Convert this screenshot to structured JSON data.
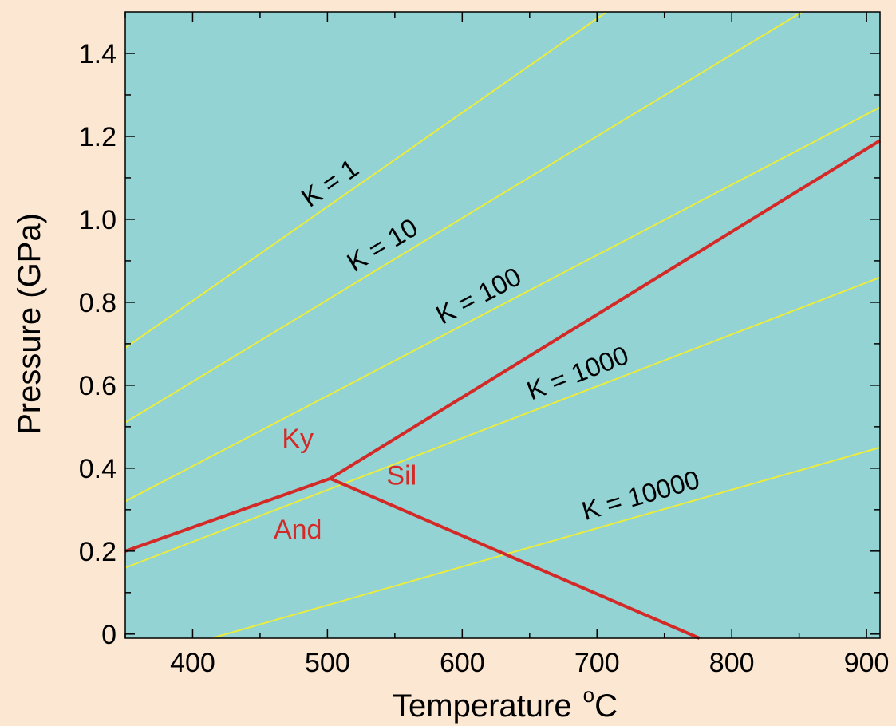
{
  "chart_data": {
    "type": "line",
    "xlabel": "Temperature",
    "xlabel_unit_sup": "o",
    "xlabel_unit": "C",
    "ylabel": "Pressure (GPa)",
    "xlim": [
      350,
      910
    ],
    "ylim": [
      -0.01,
      1.5
    ],
    "xticks": [
      400,
      500,
      600,
      700,
      800,
      900
    ],
    "xtick_labels": [
      "400",
      "500",
      "600",
      "700",
      "800",
      "900"
    ],
    "yticks": [
      0,
      0.2,
      0.4,
      0.6,
      0.8,
      1.0,
      1.2,
      1.4
    ],
    "ytick_labels": [
      "0",
      "0.2",
      "0.4",
      "0.6",
      "0.8",
      "1.0",
      "1.2",
      "1.4"
    ],
    "grid": false,
    "colors": {
      "background": "#fce8d2",
      "plot_area": "#93d3d4",
      "k_lines": "#ecec3c",
      "phase_boundary": "#d42a27",
      "text": "#000000"
    },
    "k_series": [
      {
        "name": "K = 1",
        "x": [
          350,
          707
        ],
        "y": [
          0.69,
          1.5
        ]
      },
      {
        "name": "K = 10",
        "x": [
          350,
          852
        ],
        "y": [
          0.51,
          1.5
        ]
      },
      {
        "name": "K = 100",
        "x": [
          350,
          910
        ],
        "y": [
          0.32,
          1.27
        ]
      },
      {
        "name": "K = 1000",
        "x": [
          350,
          910
        ],
        "y": [
          0.16,
          0.86
        ]
      },
      {
        "name": "K = 10000",
        "x": [
          414,
          910
        ],
        "y": [
          -0.01,
          0.45
        ]
      }
    ],
    "phase_boundaries": [
      {
        "id": "ky-and",
        "x": [
          350,
          502
        ],
        "y": [
          0.2,
          0.375
        ]
      },
      {
        "id": "ky-sil",
        "x": [
          502,
          910
        ],
        "y": [
          0.375,
          1.19
        ]
      },
      {
        "id": "and-sil",
        "x": [
          502,
          776
        ],
        "y": [
          0.375,
          -0.01
        ]
      }
    ],
    "phase_labels": [
      {
        "text": "Ky",
        "x": 478,
        "y": 0.45
      },
      {
        "text": "Sil",
        "x": 555,
        "y": 0.36
      },
      {
        "text": "And",
        "x": 478,
        "y": 0.23
      }
    ]
  }
}
